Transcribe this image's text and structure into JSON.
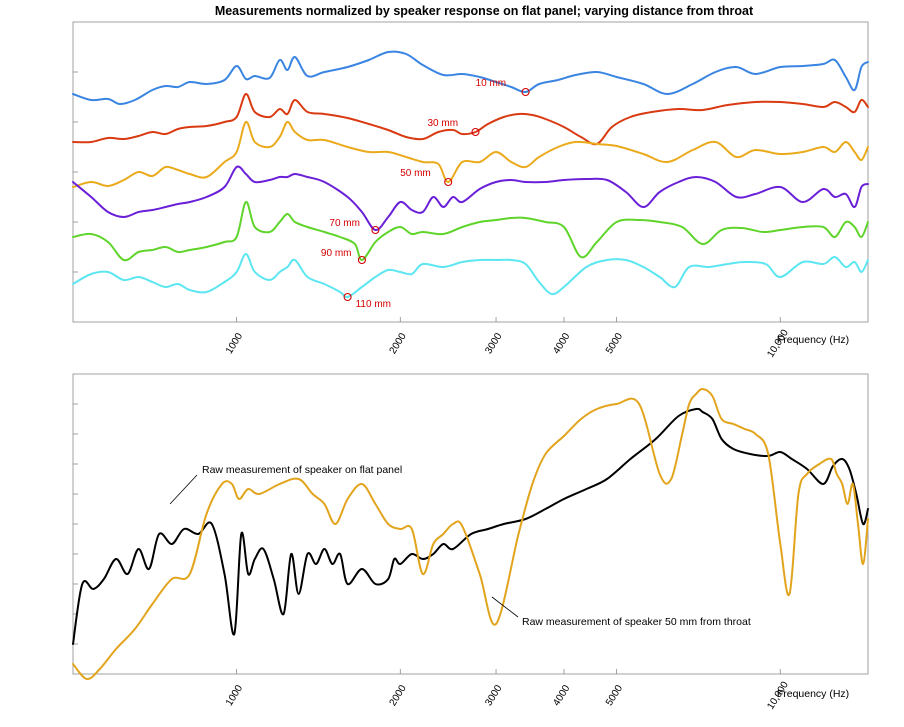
{
  "chart_data": [
    {
      "type": "line",
      "title": "Measurements normalized by speaker response on flat panel; varying distance from throat",
      "xlabel": "Frequency (Hz)",
      "ylabel": "",
      "x_scale": "log",
      "xlim": [
        500,
        14500
      ],
      "ylim": [
        0,
        300
      ],
      "x_ticks": [
        1000,
        2000,
        3000,
        4000,
        5000,
        10000
      ],
      "x_tick_labels": [
        "1000",
        "2000",
        "3000",
        "4000",
        "5000",
        "10,000"
      ],
      "y_ticks": [
        0,
        50,
        100,
        150,
        200,
        250,
        300
      ],
      "grid": false,
      "legend": "none",
      "series": [
        {
          "color": "#3a85e2",
          "markers": [
            {
              "x": 3400,
              "label": "10 mm"
            }
          ],
          "x": [
            500,
            540,
            580,
            610,
            650,
            700,
            740,
            780,
            820,
            880,
            950,
            1000,
            1040,
            1080,
            1150,
            1200,
            1240,
            1280,
            1350,
            1450,
            1600,
            1750,
            1900,
            2050,
            2200,
            2400,
            2600,
            2800,
            3000,
            3200,
            3400,
            3600,
            3900,
            4200,
            4600,
            5000,
            5600,
            6200,
            6900,
            7600,
            8300,
            9000,
            10000,
            11000,
            12000,
            12600,
            13200,
            13700,
            14100,
            14500
          ],
          "y": [
            228,
            222,
            223,
            218,
            222,
            232,
            236,
            235,
            240,
            238,
            242,
            256,
            243,
            246,
            244,
            262,
            252,
            265,
            246,
            250,
            255,
            262,
            270,
            268,
            257,
            247,
            248,
            245,
            240,
            235,
            230,
            238,
            242,
            247,
            250,
            245,
            238,
            228,
            238,
            250,
            255,
            248,
            255,
            256,
            258,
            262,
            245,
            232,
            255,
            260
          ]
        },
        {
          "color": "#d93a12",
          "markers": [
            {
              "x": 2750,
              "label": "30 mm"
            }
          ],
          "x": [
            500,
            540,
            580,
            620,
            660,
            700,
            740,
            780,
            820,
            880,
            950,
            1000,
            1040,
            1080,
            1150,
            1200,
            1240,
            1280,
            1350,
            1450,
            1600,
            1750,
            1900,
            2050,
            2200,
            2350,
            2500,
            2600,
            2750,
            2900,
            3100,
            3300,
            3500,
            3700,
            4000,
            4300,
            4600,
            4900,
            5300,
            5800,
            6500,
            7200,
            8000,
            9000,
            10000,
            11000,
            12000,
            12600,
            13200,
            13700,
            14100,
            14500
          ],
          "y": [
            180,
            180,
            184,
            183,
            186,
            190,
            188,
            193,
            195,
            196,
            200,
            205,
            228,
            210,
            205,
            213,
            208,
            222,
            210,
            208,
            204,
            198,
            192,
            185,
            183,
            190,
            192,
            188,
            190,
            198,
            205,
            208,
            207,
            203,
            195,
            185,
            178,
            195,
            205,
            210,
            213,
            212,
            217,
            220,
            220,
            218,
            215,
            220,
            215,
            210,
            222,
            215
          ]
        },
        {
          "color": "#eaaa1c",
          "markers": [
            {
              "x": 2450,
              "label": "50 mm"
            }
          ],
          "x": [
            500,
            540,
            580,
            620,
            660,
            700,
            740,
            780,
            820,
            880,
            950,
            1000,
            1040,
            1080,
            1150,
            1200,
            1240,
            1280,
            1350,
            1450,
            1600,
            1750,
            1900,
            2050,
            2200,
            2350,
            2450,
            2600,
            2800,
            3000,
            3200,
            3400,
            3600,
            3900,
            4200,
            4600,
            5000,
            5600,
            6200,
            6900,
            7600,
            8300,
            9000,
            10000,
            11000,
            12000,
            12600,
            13200,
            13700,
            14100,
            14500
          ],
          "y": [
            135,
            140,
            136,
            142,
            150,
            146,
            155,
            152,
            148,
            145,
            160,
            170,
            200,
            180,
            175,
            185,
            200,
            190,
            182,
            182,
            175,
            170,
            170,
            165,
            160,
            158,
            140,
            160,
            160,
            170,
            160,
            155,
            165,
            175,
            180,
            178,
            176,
            168,
            160,
            172,
            180,
            165,
            172,
            168,
            170,
            175,
            170,
            180,
            170,
            162,
            175
          ]
        },
        {
          "color": "#6a1fd8",
          "markers": [
            {
              "x": 1800,
              "label": "70 mm"
            }
          ],
          "x": [
            500,
            540,
            580,
            620,
            660,
            700,
            740,
            780,
            820,
            880,
            950,
            1000,
            1040,
            1080,
            1150,
            1200,
            1240,
            1280,
            1350,
            1450,
            1600,
            1700,
            1800,
            1900,
            2000,
            2100,
            2200,
            2300,
            2400,
            2500,
            2600,
            2800,
            3000,
            3200,
            3400,
            3700,
            4000,
            4400,
            4800,
            5200,
            5600,
            6000,
            6500,
            7000,
            7600,
            8300,
            9000,
            10000,
            11000,
            12000,
            12600,
            13200,
            13700,
            14100,
            14500
          ],
          "y": [
            140,
            125,
            110,
            105,
            110,
            112,
            115,
            118,
            120,
            125,
            135,
            155,
            148,
            140,
            142,
            145,
            145,
            148,
            145,
            140,
            125,
            110,
            92,
            105,
            120,
            112,
            110,
            125,
            115,
            125,
            120,
            133,
            140,
            142,
            140,
            140,
            142,
            143,
            142,
            130,
            115,
            130,
            140,
            145,
            140,
            125,
            128,
            135,
            120,
            133,
            125,
            128,
            115,
            135,
            138
          ]
        },
        {
          "color": "#5fd42a",
          "markers": [
            {
              "x": 1700,
              "label": "90 mm"
            }
          ],
          "x": [
            500,
            540,
            580,
            620,
            660,
            700,
            740,
            780,
            820,
            880,
            950,
            1000,
            1040,
            1080,
            1150,
            1200,
            1240,
            1280,
            1350,
            1450,
            1550,
            1650,
            1700,
            1800,
            1900,
            2000,
            2100,
            2200,
            2400,
            2600,
            2800,
            3000,
            3200,
            3400,
            3700,
            4000,
            4300,
            4600,
            5000,
            5500,
            6000,
            6600,
            7200,
            7800,
            8500,
            9300,
            10000,
            11000,
            12000,
            12600,
            13200,
            13700,
            14100,
            14500
          ],
          "y": [
            85,
            88,
            80,
            62,
            70,
            72,
            75,
            70,
            72,
            75,
            80,
            85,
            120,
            95,
            90,
            100,
            108,
            100,
            95,
            90,
            85,
            78,
            62,
            80,
            90,
            95,
            88,
            90,
            88,
            95,
            100,
            102,
            104,
            104,
            100,
            95,
            65,
            80,
            100,
            102,
            100,
            95,
            78,
            92,
            94,
            90,
            92,
            95,
            95,
            85,
            100,
            95,
            85,
            100
          ]
        },
        {
          "color": "#5ce6f2",
          "markers": [
            {
              "x": 1600,
              "label": "110 mm"
            }
          ],
          "x": [
            500,
            540,
            580,
            620,
            660,
            700,
            740,
            780,
            820,
            880,
            950,
            1000,
            1040,
            1080,
            1150,
            1200,
            1240,
            1280,
            1350,
            1450,
            1550,
            1600,
            1700,
            1800,
            1900,
            2000,
            2100,
            2200,
            2400,
            2600,
            2800,
            3000,
            3200,
            3400,
            3600,
            3800,
            4000,
            4400,
            4800,
            5200,
            5600,
            6000,
            6400,
            6800,
            7400,
            8000,
            8600,
            9400,
            10000,
            11000,
            12000,
            12600,
            13200,
            13700,
            14100,
            14500
          ],
          "y": [
            38,
            48,
            50,
            42,
            45,
            40,
            35,
            38,
            32,
            30,
            40,
            50,
            68,
            50,
            42,
            50,
            55,
            62,
            45,
            38,
            30,
            25,
            35,
            45,
            52,
            50,
            48,
            58,
            55,
            60,
            62,
            62,
            62,
            58,
            40,
            28,
            35,
            55,
            62,
            62,
            55,
            45,
            35,
            55,
            55,
            58,
            60,
            58,
            45,
            60,
            58,
            65,
            55,
            60,
            50,
            62
          ]
        }
      ]
    },
    {
      "type": "line",
      "title": "",
      "xlabel": "Frequency (Hz)",
      "ylabel": "",
      "x_scale": "log",
      "xlim": [
        500,
        14500
      ],
      "ylim": [
        0,
        300
      ],
      "x_ticks": [
        1000,
        2000,
        3000,
        4000,
        5000,
        10000
      ],
      "x_tick_labels": [
        "1000",
        "2000",
        "3000",
        "4000",
        "5000",
        "10,000"
      ],
      "y_ticks": [
        0,
        30,
        60,
        90,
        120,
        150,
        180,
        210,
        240,
        270,
        300
      ],
      "grid": false,
      "legend": "none",
      "series": [
        {
          "color": "#000000",
          "annotation": "Raw measurement of speaker on flat panel",
          "x": [
            500,
            520,
            545,
            570,
            600,
            630,
            660,
            690,
            720,
            760,
            800,
            850,
            900,
            950,
            990,
            1020,
            1050,
            1080,
            1120,
            1170,
            1220,
            1260,
            1300,
            1350,
            1400,
            1450,
            1500,
            1550,
            1600,
            1700,
            1800,
            1900,
            1950,
            2000,
            2100,
            2200,
            2300,
            2400,
            2500,
            2700,
            2900,
            3100,
            3400,
            3700,
            4000,
            4400,
            4800,
            5300,
            5900,
            6500,
            7000,
            7200,
            7500,
            7800,
            8200,
            8800,
            9500,
            10000,
            10500,
            11200,
            12000,
            12500,
            13000,
            13400,
            13800,
            14200,
            14500
          ],
          "y": [
            30,
            90,
            85,
            95,
            115,
            100,
            125,
            105,
            140,
            130,
            145,
            140,
            150,
            100,
            40,
            140,
            100,
            115,
            125,
            95,
            60,
            120,
            80,
            120,
            110,
            125,
            110,
            120,
            90,
            105,
            90,
            95,
            115,
            110,
            120,
            115,
            120,
            130,
            125,
            140,
            145,
            150,
            155,
            165,
            175,
            185,
            195,
            215,
            235,
            258,
            265,
            262,
            255,
            235,
            225,
            220,
            218,
            222,
            215,
            205,
            190,
            208,
            215,
            205,
            180,
            150,
            165
          ]
        },
        {
          "color": "#e2a41c",
          "annotation": "Raw measurement of speaker 50 mm from throat",
          "x": [
            500,
            530,
            560,
            600,
            650,
            700,
            760,
            820,
            880,
            940,
            980,
            1010,
            1050,
            1100,
            1200,
            1300,
            1380,
            1450,
            1520,
            1600,
            1700,
            1800,
            1900,
            2000,
            2100,
            2200,
            2300,
            2400,
            2500,
            2600,
            2800,
            3000,
            3300,
            3500,
            3700,
            4000,
            4300,
            4600,
            5000,
            5500,
            6000,
            6300,
            6600,
            6800,
            7000,
            7200,
            7500,
            7800,
            8200,
            8600,
            9000,
            9500,
            10000,
            10400,
            10800,
            11200,
            11800,
            12400,
            12700,
            13000,
            13300,
            13600,
            13900,
            14200,
            14500
          ],
          "y": [
            10,
            -5,
            5,
            25,
            45,
            70,
            95,
            100,
            160,
            190,
            190,
            175,
            185,
            180,
            190,
            195,
            180,
            170,
            150,
            175,
            190,
            170,
            150,
            145,
            145,
            100,
            130,
            140,
            150,
            148,
            100,
            50,
            140,
            190,
            220,
            238,
            255,
            265,
            270,
            270,
            200,
            195,
            240,
            270,
            280,
            285,
            278,
            255,
            250,
            245,
            240,
            220,
            130,
            80,
            180,
            200,
            210,
            215,
            200,
            190,
            170,
            190,
            150,
            110,
            155
          ]
        }
      ]
    }
  ],
  "axis_label": "Frequency (Hz)"
}
